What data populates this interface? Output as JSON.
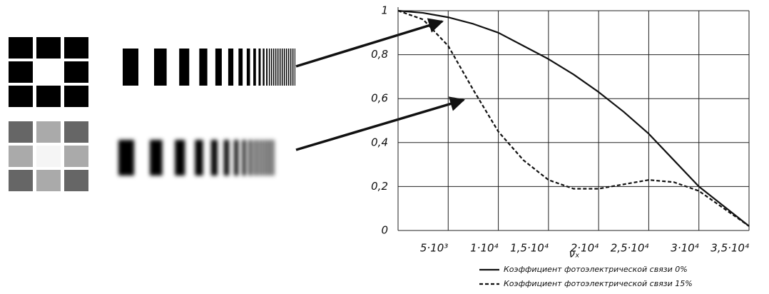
{
  "chart_data": {
    "type": "line",
    "x_label": "νₓ",
    "x": [
      0,
      2500,
      5000,
      7500,
      10000,
      12500,
      15000,
      17500,
      20000,
      22500,
      25000,
      27500,
      30000,
      32500,
      35000
    ],
    "series": [
      {
        "name": "Коэффициент фотоэлектрической связи 0%",
        "color": "#111111",
        "line_style": "solid",
        "values": [
          1,
          0.99,
          0.97,
          0.94,
          0.9,
          0.84,
          0.78,
          0.71,
          0.63,
          0.54,
          0.44,
          0.32,
          0.2,
          0.11,
          0.02
        ]
      },
      {
        "name": "Коэффициент фотоэлектрической связи 15%",
        "color": "#111111",
        "line_style": "dashed",
        "values": [
          1,
          0.96,
          0.84,
          0.64,
          0.45,
          0.32,
          0.23,
          0.19,
          0.19,
          0.21,
          0.23,
          0.22,
          0.18,
          0.1,
          0.02
        ]
      }
    ],
    "xlim": [
      0,
      35000
    ],
    "xticks": [
      {
        "value": 5000,
        "label": "5·10³"
      },
      {
        "value": 10000,
        "label": "1·10⁴"
      },
      {
        "value": 15000,
        "label": "1,5·10⁴"
      },
      {
        "value": 20000,
        "label": "2·10⁴"
      },
      {
        "value": 25000,
        "label": "2,5·10⁴"
      },
      {
        "value": 30000,
        "label": "3·10⁴"
      },
      {
        "value": 35000,
        "label": "3,5·10⁴"
      }
    ],
    "ylim": [
      0,
      1
    ],
    "yticks": [
      0,
      {
        "value": 0.2,
        "label": "0,2"
      },
      {
        "value": 0.4,
        "label": "0,4"
      },
      {
        "value": 0.6,
        "label": "0,6"
      },
      {
        "value": 0.8,
        "label": "0,8"
      },
      1
    ],
    "grid": true
  }
}
